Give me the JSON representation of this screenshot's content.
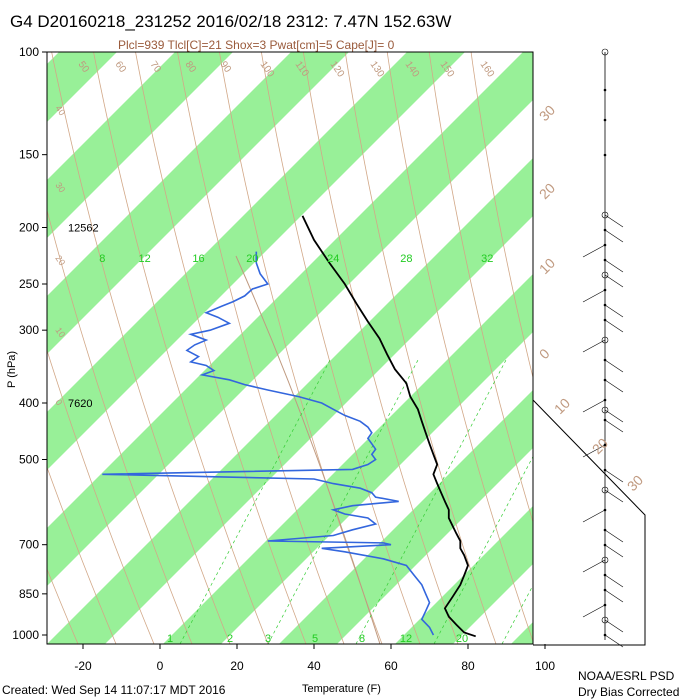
{
  "header": {
    "title": "G4 D20160218_231252 2016/02/18 2312:  7.47N 152.63W",
    "subtitle": "Plcl=939 Tlcl[C]=21 Shox=3 Pwat[cm]=5 Cape[J]= 0"
  },
  "footer": {
    "created": "Created: Wed Sep 14 11:07:17 MDT 2016",
    "credit_line1": "NOAA/ESRL PSD",
    "credit_line2": "Dry Bias Corrected"
  },
  "colors": {
    "isotherm_band": "#98f098",
    "dry_adiabat": "#d2a888",
    "moist_adiabat": "#33cc33",
    "dewpoint": "#3366dd",
    "temperature": "#000000",
    "frame": "#000000"
  },
  "chart_data": {
    "type": "line",
    "title": "G4 D20160218_231252 2016/02/18 2312:  7.47N 152.63W",
    "xlabel": "Temperature (F)",
    "ylabel": "P (hPa)",
    "x_ticks": [
      "-20",
      "0",
      "20",
      "40",
      "60",
      "80",
      "100"
    ],
    "x_tick_values": [
      -20,
      0,
      20,
      40,
      60,
      80,
      100
    ],
    "y_ticks": [
      "100",
      "150",
      "200",
      "250",
      "300",
      "400",
      "500",
      "700",
      "850",
      "1000"
    ],
    "y_tick_values": [
      100,
      150,
      200,
      250,
      300,
      400,
      500,
      700,
      850,
      1000
    ],
    "xlim": [
      -30,
      128
    ],
    "ylim": [
      1050,
      100
    ],
    "y_scale": "log",
    "height_labels": [
      {
        "text": "12562",
        "p": 200
      },
      {
        "text": "7620",
        "p": 400
      }
    ],
    "mixing_ratio_labels": [
      {
        "text": "8",
        "t": -15
      },
      {
        "text": "12",
        "t": -4
      },
      {
        "text": "16",
        "t": 10
      },
      {
        "text": "20",
        "t": 24
      },
      {
        "text": "24",
        "t": 45
      },
      {
        "text": "28",
        "t": 64
      },
      {
        "text": "32",
        "t": 85
      }
    ],
    "mixing_ratio_bottom_labels": [
      "1",
      "2",
      "3",
      "5",
      "8",
      "12",
      "20"
    ],
    "potential_temp_labels": [
      "50",
      "60",
      "70",
      "80",
      "90",
      "100",
      "110",
      "120",
      "130",
      "140",
      "150",
      "160",
      "40",
      "30",
      "20",
      "10",
      "0"
    ],
    "skewed_isotherm_labels": [
      "30",
      "20",
      "10",
      "0",
      "10",
      "20",
      "30"
    ],
    "series": [
      {
        "name": "Temperature",
        "points": [
          [
            191,
            37
          ],
          [
            210,
            40
          ],
          [
            230,
            44
          ],
          [
            250,
            48
          ],
          [
            270,
            51
          ],
          [
            290,
            54
          ],
          [
            310,
            57
          ],
          [
            330,
            59
          ],
          [
            350,
            61
          ],
          [
            370,
            64
          ],
          [
            390,
            65
          ],
          [
            410,
            67
          ],
          [
            430,
            68
          ],
          [
            450,
            69
          ],
          [
            470,
            70
          ],
          [
            490,
            71
          ],
          [
            510,
            72
          ],
          [
            530,
            71
          ],
          [
            550,
            72
          ],
          [
            570,
            73
          ],
          [
            590,
            74
          ],
          [
            610,
            75
          ],
          [
            630,
            75
          ],
          [
            650,
            76
          ],
          [
            670,
            77
          ],
          [
            690,
            78
          ],
          [
            710,
            78
          ],
          [
            730,
            79
          ],
          [
            760,
            80
          ],
          [
            790,
            79
          ],
          [
            820,
            78
          ],
          [
            860,
            76
          ],
          [
            900,
            74
          ],
          [
            930,
            75
          ],
          [
            960,
            77
          ],
          [
            990,
            79
          ],
          [
            1005,
            82
          ]
        ]
      },
      {
        "name": "Dewpoint",
        "points": [
          [
            220,
            25
          ],
          [
            230,
            25
          ],
          [
            240,
            26
          ],
          [
            250,
            28
          ],
          [
            255,
            24
          ],
          [
            262,
            22
          ],
          [
            268,
            19
          ],
          [
            273,
            16
          ],
          [
            280,
            12
          ],
          [
            285,
            15
          ],
          [
            292,
            18
          ],
          [
            300,
            13
          ],
          [
            305,
            8
          ],
          [
            312,
            12
          ],
          [
            318,
            9
          ],
          [
            325,
            7
          ],
          [
            333,
            10
          ],
          [
            340,
            8
          ],
          [
            345,
            12
          ],
          [
            352,
            14
          ],
          [
            358,
            11
          ],
          [
            365,
            18
          ],
          [
            372,
            22
          ],
          [
            380,
            28
          ],
          [
            390,
            36
          ],
          [
            400,
            42
          ],
          [
            410,
            45
          ],
          [
            420,
            48
          ],
          [
            430,
            52
          ],
          [
            440,
            54
          ],
          [
            450,
            55
          ],
          [
            460,
            54
          ],
          [
            470,
            55
          ],
          [
            480,
            56
          ],
          [
            490,
            55
          ],
          [
            500,
            56
          ],
          [
            510,
            54
          ],
          [
            520,
            50
          ],
          [
            530,
            -15
          ],
          [
            540,
            40
          ],
          [
            550,
            45
          ],
          [
            560,
            52
          ],
          [
            570,
            55
          ],
          [
            580,
            56
          ],
          [
            590,
            62
          ],
          [
            600,
            50
          ],
          [
            610,
            45
          ],
          [
            620,
            48
          ],
          [
            630,
            54
          ],
          [
            645,
            56
          ],
          [
            660,
            50
          ],
          [
            675,
            45
          ],
          [
            690,
            28
          ],
          [
            695,
            58
          ],
          [
            700,
            60
          ],
          [
            710,
            42
          ],
          [
            720,
            48
          ],
          [
            740,
            58
          ],
          [
            760,
            64
          ],
          [
            790,
            66
          ],
          [
            820,
            68
          ],
          [
            850,
            69
          ],
          [
            880,
            70
          ],
          [
            910,
            69
          ],
          [
            940,
            68
          ],
          [
            970,
            70
          ],
          [
            1000,
            71
          ]
        ]
      }
    ],
    "grid": true,
    "legend": "none"
  }
}
